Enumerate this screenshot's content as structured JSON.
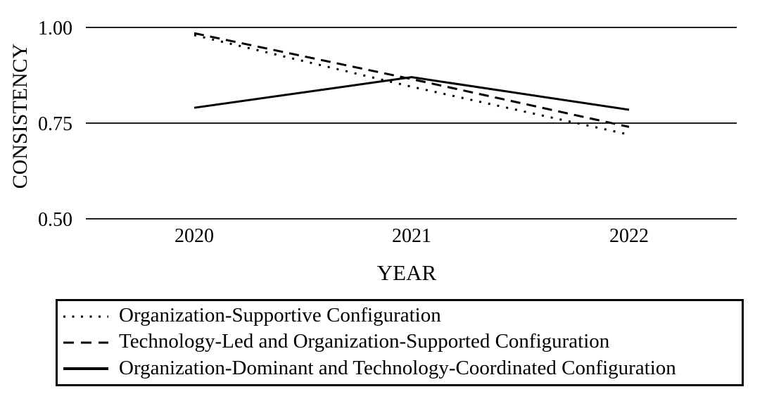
{
  "chart_data": {
    "type": "line",
    "title": "",
    "x": [
      2020,
      2021,
      2022
    ],
    "x_tick_labels": [
      "2020",
      "2021",
      "2022"
    ],
    "series": [
      {
        "name": "Organization-Supportive Configuration",
        "line_style": "dotted",
        "values": [
          0.98,
          0.845,
          0.72
        ]
      },
      {
        "name": "Technology-Led and Organization-Supported Configuration",
        "line_style": "dashed",
        "values": [
          0.985,
          0.865,
          0.74
        ]
      },
      {
        "name": "Organization-Dominant and Technology-Coordinated Configuration",
        "line_style": "solid",
        "values": [
          0.79,
          0.87,
          0.785
        ]
      }
    ],
    "xlabel": "YEAR",
    "ylabel": "CONSISTENCY",
    "yticks": [
      1.0,
      0.75,
      0.5
    ],
    "ytick_labels": [
      "1.00",
      "0.75",
      "0.50"
    ],
    "ylim": [
      0.5,
      1.0
    ],
    "grid": "horizontal-only",
    "legend_position": "bottom-box",
    "line_color": "#000000",
    "grid_color": "#000000",
    "background_color": "#ffffff"
  }
}
